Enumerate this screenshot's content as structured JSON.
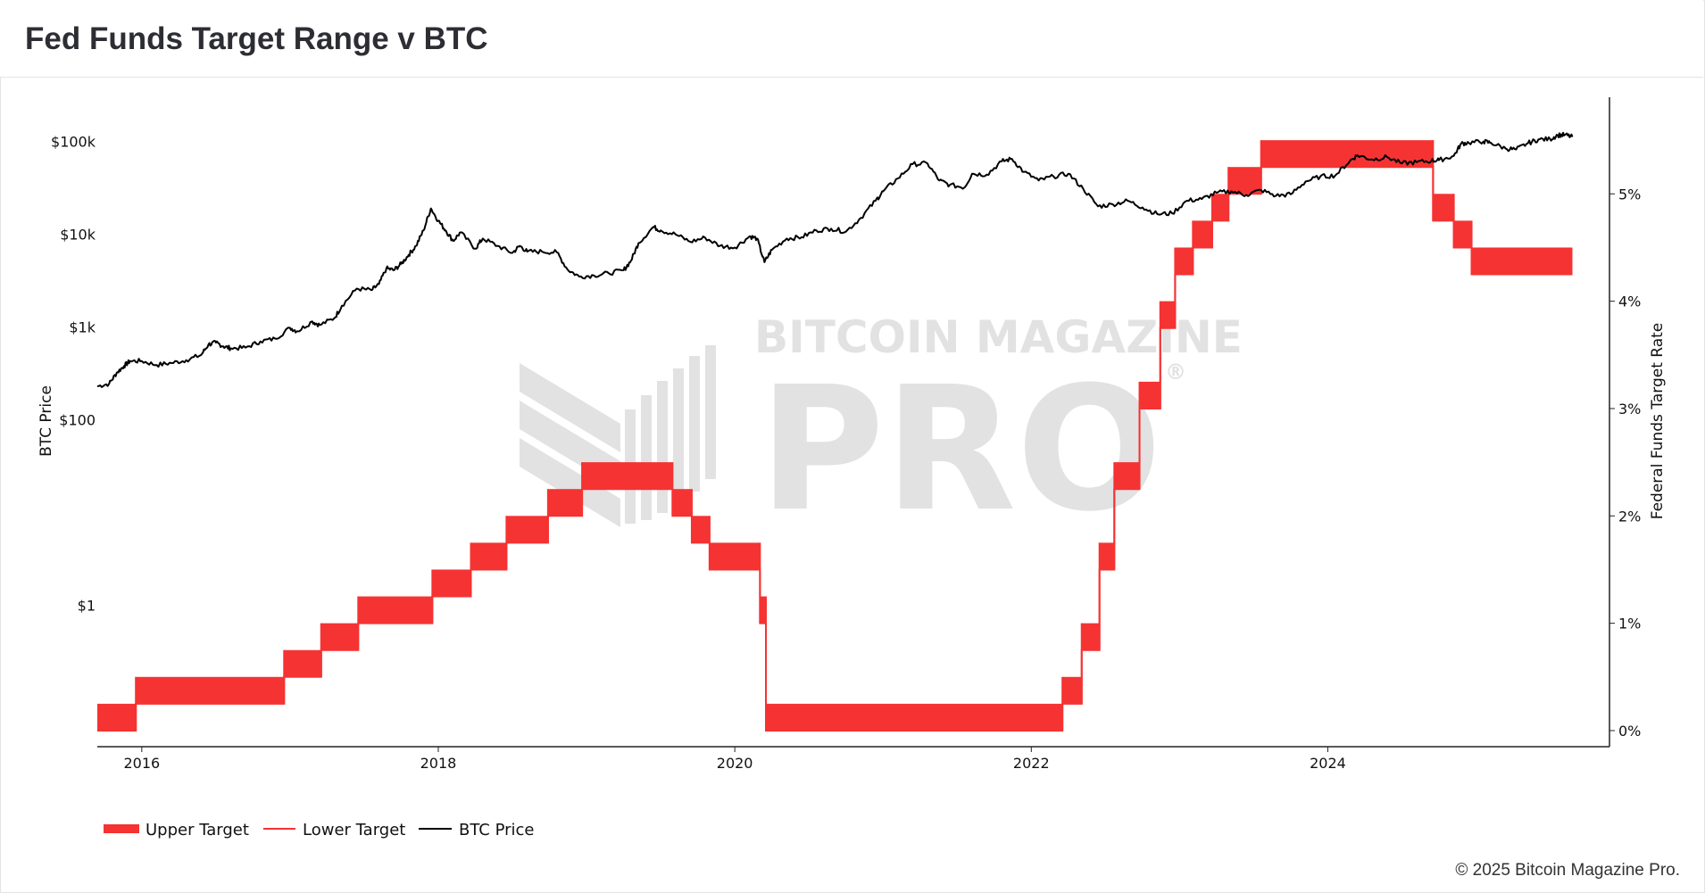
{
  "header": {
    "title": "Fed Funds Target Range v BTC"
  },
  "footer": {
    "copyright": "© 2025 Bitcoin Magazine Pro."
  },
  "watermark": {
    "line1": "BITCOIN MAGAZINE",
    "line2": "PRO",
    "mark": "®"
  },
  "colors": {
    "target": "#f53333",
    "btc": "#000000",
    "axis": "#222222",
    "watermark": "#e2e2e2"
  },
  "chart_data": {
    "type": "line",
    "title": "Fed Funds Target Range v BTC",
    "x_axis": {
      "range": [
        2015.7,
        2025.9
      ],
      "ticks": [
        "2016",
        "2018",
        "2020",
        "2022",
        "2024"
      ],
      "tick_values": [
        2016,
        2018,
        2020,
        2022,
        2024
      ]
    },
    "y_left": {
      "label": "BTC Price",
      "scale": "log",
      "range": [
        0.03,
        300000
      ],
      "ticks": [
        "$1",
        "$100",
        "$1k",
        "$10k",
        "$100k"
      ],
      "tick_values": [
        1,
        100,
        1000,
        10000,
        100000
      ]
    },
    "y_right": {
      "label": "Federal Funds Target Rate",
      "range": [
        -0.15,
        5.9
      ],
      "ticks": [
        "0%",
        "1%",
        "2%",
        "3%",
        "4%",
        "5%"
      ],
      "tick_values": [
        0,
        1,
        2,
        3,
        4,
        5
      ]
    },
    "legend": {
      "position": "bottom-left",
      "items": [
        {
          "name": "Upper Target",
          "style": "thick"
        },
        {
          "name": "Lower Target",
          "style": "thin"
        },
        {
          "name": "BTC Price",
          "style": "line"
        }
      ]
    },
    "series": [
      {
        "name": "Upper Target",
        "axis": "right",
        "type": "step",
        "steps": [
          [
            2015.7,
            0.25
          ],
          [
            2015.96,
            0.5
          ],
          [
            2016.96,
            0.75
          ],
          [
            2017.21,
            1.0
          ],
          [
            2017.46,
            1.25
          ],
          [
            2017.96,
            1.5
          ],
          [
            2018.22,
            1.75
          ],
          [
            2018.46,
            2.0
          ],
          [
            2018.74,
            2.25
          ],
          [
            2018.97,
            2.5
          ],
          [
            2019.58,
            2.25
          ],
          [
            2019.71,
            2.0
          ],
          [
            2019.83,
            1.75
          ],
          [
            2020.17,
            1.25
          ],
          [
            2020.21,
            0.25
          ],
          [
            2022.21,
            0.5
          ],
          [
            2022.34,
            1.0
          ],
          [
            2022.46,
            1.75
          ],
          [
            2022.56,
            2.5
          ],
          [
            2022.73,
            3.25
          ],
          [
            2022.87,
            4.0
          ],
          [
            2022.97,
            4.5
          ],
          [
            2023.09,
            4.75
          ],
          [
            2023.22,
            5.0
          ],
          [
            2023.33,
            5.25
          ],
          [
            2023.55,
            5.5
          ],
          [
            2024.71,
            5.0
          ],
          [
            2024.85,
            4.75
          ],
          [
            2024.97,
            4.5
          ],
          [
            2025.65,
            4.5
          ]
        ]
      },
      {
        "name": "Lower Target",
        "axis": "right",
        "type": "step",
        "steps": [
          [
            2015.7,
            0.0
          ],
          [
            2015.96,
            0.25
          ],
          [
            2016.96,
            0.5
          ],
          [
            2017.21,
            0.75
          ],
          [
            2017.46,
            1.0
          ],
          [
            2017.96,
            1.25
          ],
          [
            2018.22,
            1.5
          ],
          [
            2018.46,
            1.75
          ],
          [
            2018.74,
            2.0
          ],
          [
            2018.97,
            2.25
          ],
          [
            2019.58,
            2.0
          ],
          [
            2019.71,
            1.75
          ],
          [
            2019.83,
            1.5
          ],
          [
            2020.17,
            1.0
          ],
          [
            2020.21,
            0.0
          ],
          [
            2022.21,
            0.25
          ],
          [
            2022.34,
            0.75
          ],
          [
            2022.46,
            1.5
          ],
          [
            2022.56,
            2.25
          ],
          [
            2022.73,
            3.0
          ],
          [
            2022.87,
            3.75
          ],
          [
            2022.97,
            4.25
          ],
          [
            2023.09,
            4.5
          ],
          [
            2023.22,
            4.75
          ],
          [
            2023.33,
            5.0
          ],
          [
            2023.55,
            5.25
          ],
          [
            2024.71,
            4.75
          ],
          [
            2024.85,
            4.5
          ],
          [
            2024.97,
            4.25
          ],
          [
            2025.65,
            4.25
          ]
        ]
      },
      {
        "name": "BTC Price",
        "axis": "left",
        "type": "line",
        "points": [
          [
            2015.7,
            230
          ],
          [
            2015.78,
            245
          ],
          [
            2015.83,
            320
          ],
          [
            2015.88,
            380
          ],
          [
            2015.92,
            430
          ],
          [
            2016.0,
            430
          ],
          [
            2016.1,
            390
          ],
          [
            2016.2,
            410
          ],
          [
            2016.3,
            440
          ],
          [
            2016.4,
            500
          ],
          [
            2016.45,
            650
          ],
          [
            2016.5,
            680
          ],
          [
            2016.55,
            620
          ],
          [
            2016.6,
            590
          ],
          [
            2016.7,
            600
          ],
          [
            2016.8,
            700
          ],
          [
            2016.9,
            750
          ],
          [
            2017.0,
            980
          ],
          [
            2017.05,
            900
          ],
          [
            2017.15,
            1150
          ],
          [
            2017.2,
            1050
          ],
          [
            2017.3,
            1250
          ],
          [
            2017.35,
            1700
          ],
          [
            2017.45,
            2600
          ],
          [
            2017.55,
            2500
          ],
          [
            2017.6,
            2900
          ],
          [
            2017.65,
            4300
          ],
          [
            2017.7,
            4100
          ],
          [
            2017.75,
            4800
          ],
          [
            2017.8,
            6000
          ],
          [
            2017.85,
            7500
          ],
          [
            2017.9,
            11000
          ],
          [
            2017.95,
            19000
          ],
          [
            2018.0,
            14000
          ],
          [
            2018.05,
            11000
          ],
          [
            2018.1,
            8500
          ],
          [
            2018.15,
            10500
          ],
          [
            2018.25,
            7000
          ],
          [
            2018.3,
            9000
          ],
          [
            2018.4,
            7500
          ],
          [
            2018.5,
            6300
          ],
          [
            2018.55,
            7500
          ],
          [
            2018.6,
            6500
          ],
          [
            2018.7,
            6500
          ],
          [
            2018.8,
            6400
          ],
          [
            2018.87,
            4200
          ],
          [
            2018.95,
            3500
          ],
          [
            2019.05,
            3600
          ],
          [
            2019.15,
            3800
          ],
          [
            2019.25,
            4100
          ],
          [
            2019.3,
            5200
          ],
          [
            2019.35,
            8000
          ],
          [
            2019.45,
            12000
          ],
          [
            2019.5,
            11000
          ],
          [
            2019.6,
            10000
          ],
          [
            2019.7,
            8300
          ],
          [
            2019.8,
            9200
          ],
          [
            2019.9,
            7500
          ],
          [
            2020.0,
            7200
          ],
          [
            2020.1,
            9500
          ],
          [
            2020.15,
            9000
          ],
          [
            2020.2,
            5000
          ],
          [
            2020.25,
            6800
          ],
          [
            2020.35,
            9000
          ],
          [
            2020.45,
            9300
          ],
          [
            2020.55,
            11000
          ],
          [
            2020.65,
            11500
          ],
          [
            2020.75,
            10700
          ],
          [
            2020.85,
            15000
          ],
          [
            2020.95,
            23000
          ],
          [
            2021.0,
            29000
          ],
          [
            2021.1,
            40000
          ],
          [
            2021.2,
            57000
          ],
          [
            2021.3,
            58000
          ],
          [
            2021.38,
            38000
          ],
          [
            2021.45,
            34000
          ],
          [
            2021.55,
            32000
          ],
          [
            2021.6,
            45000
          ],
          [
            2021.7,
            44000
          ],
          [
            2021.8,
            61000
          ],
          [
            2021.87,
            65000
          ],
          [
            2021.95,
            47000
          ],
          [
            2022.05,
            38000
          ],
          [
            2022.15,
            42000
          ],
          [
            2022.25,
            45000
          ],
          [
            2022.35,
            31000
          ],
          [
            2022.45,
            20000
          ],
          [
            2022.55,
            21000
          ],
          [
            2022.65,
            23000
          ],
          [
            2022.75,
            19500
          ],
          [
            2022.85,
            16500
          ],
          [
            2022.95,
            16800
          ],
          [
            2023.05,
            23000
          ],
          [
            2023.15,
            24000
          ],
          [
            2023.25,
            28000
          ],
          [
            2023.35,
            29000
          ],
          [
            2023.45,
            26500
          ],
          [
            2023.55,
            30000
          ],
          [
            2023.65,
            26000
          ],
          [
            2023.75,
            27000
          ],
          [
            2023.85,
            37000
          ],
          [
            2023.95,
            42000
          ],
          [
            2024.05,
            43000
          ],
          [
            2024.15,
            62000
          ],
          [
            2024.2,
            71000
          ],
          [
            2024.3,
            64000
          ],
          [
            2024.4,
            68000
          ],
          [
            2024.5,
            58000
          ],
          [
            2024.6,
            60000
          ],
          [
            2024.7,
            62000
          ],
          [
            2024.75,
            63000
          ],
          [
            2024.85,
            70000
          ],
          [
            2024.9,
            95000
          ],
          [
            2024.95,
            97000
          ],
          [
            2025.05,
            100000
          ],
          [
            2025.1,
            97000
          ],
          [
            2025.2,
            84000
          ],
          [
            2025.27,
            82000
          ],
          [
            2025.35,
            96000
          ],
          [
            2025.42,
            105000
          ],
          [
            2025.5,
            106000
          ],
          [
            2025.55,
            117000
          ],
          [
            2025.6,
            118000
          ],
          [
            2025.65,
            112000
          ]
        ]
      }
    ]
  }
}
